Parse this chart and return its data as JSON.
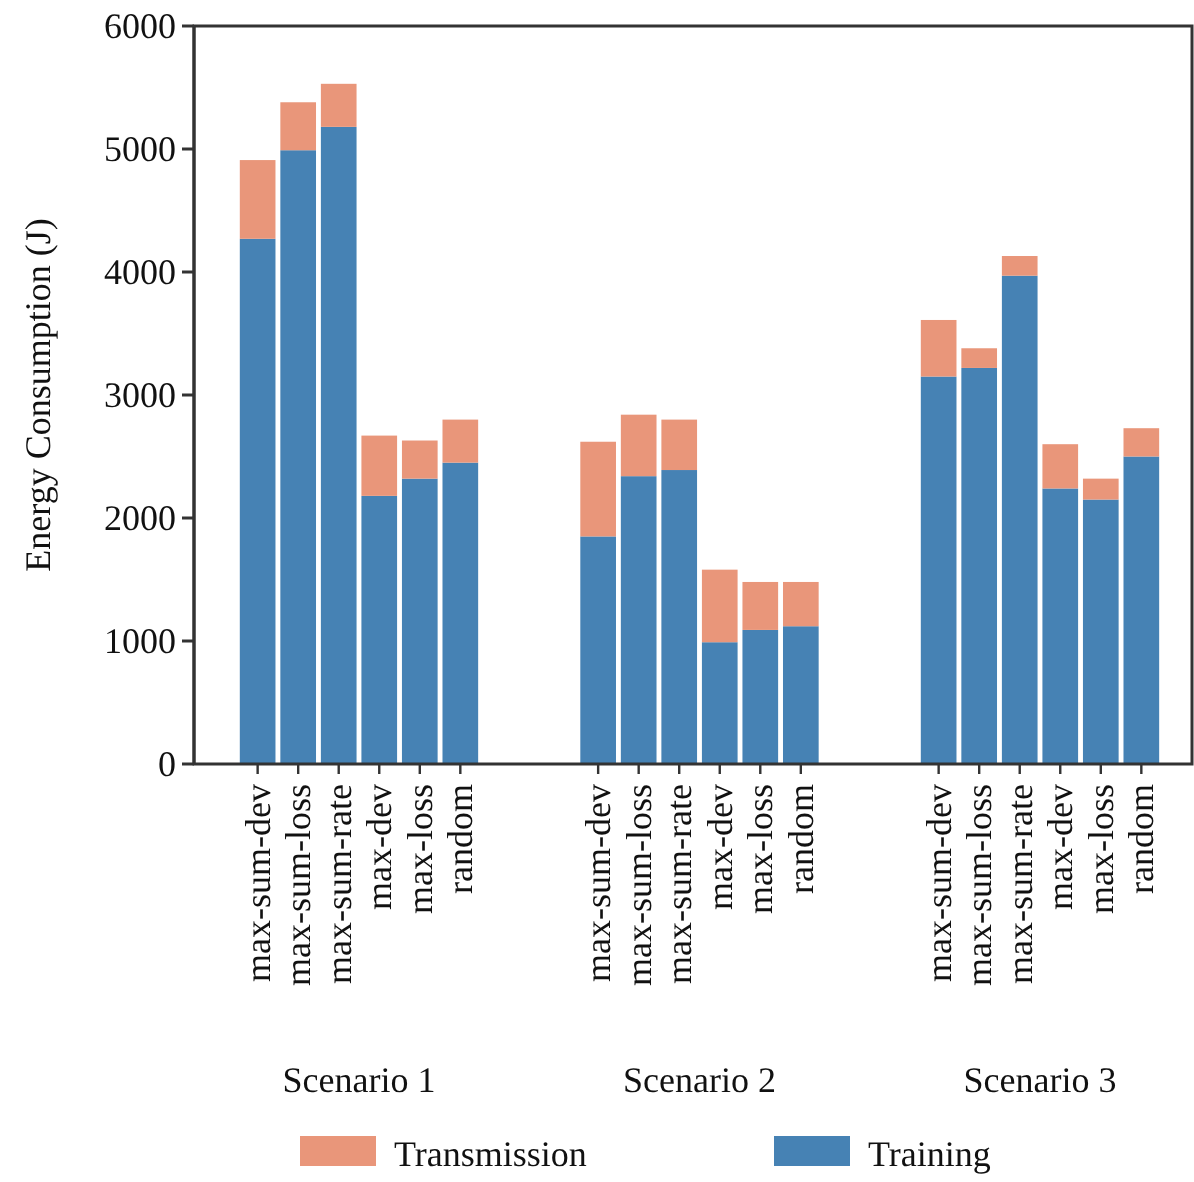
{
  "chart_data": {
    "type": "bar",
    "stacked": true,
    "ylabel": "Energy Consumption (J)",
    "categories": [
      "max-sum-dev",
      "max-sum-loss",
      "max-sum-rate",
      "max-dev",
      "max-loss",
      "random",
      "max-sum-dev",
      "max-sum-loss",
      "max-sum-rate",
      "max-dev",
      "max-loss",
      "random",
      "max-sum-dev",
      "max-sum-loss",
      "max-sum-rate",
      "max-dev",
      "max-loss",
      "random"
    ],
    "series": [
      {
        "name": "Training",
        "color": "#4682b4",
        "values": [
          4270,
          4990,
          5180,
          2180,
          2320,
          2450,
          1850,
          2340,
          2390,
          990,
          1090,
          1120,
          3150,
          3220,
          3970,
          2240,
          2150,
          2500
        ]
      },
      {
        "name": "Transmission",
        "color": "#e9967a",
        "values": [
          640,
          390,
          350,
          490,
          310,
          350,
          770,
          500,
          410,
          590,
          390,
          360,
          460,
          160,
          160,
          360,
          170,
          230
        ]
      }
    ],
    "annotations": [
      "Scenario 1",
      "Scenario 2",
      "Scenario 3"
    ],
    "ylim": [
      0,
      6000
    ],
    "yticks": [
      0,
      1000,
      2000,
      3000,
      4000,
      5000,
      6000
    ],
    "legend": "bottom",
    "grid": false
  }
}
